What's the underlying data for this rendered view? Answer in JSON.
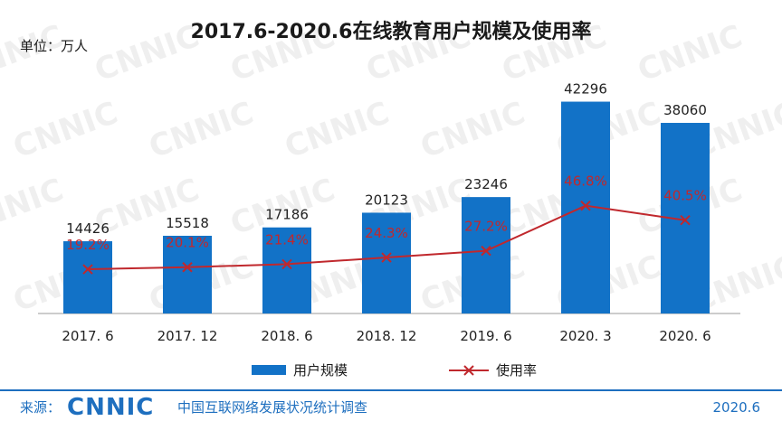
{
  "chart_data": {
    "type": "bar",
    "title": "2017.6-2020.6在线教育用户规模及使用率",
    "unit_label": "单位：万人",
    "categories": [
      "2017. 6",
      "2017. 12",
      "2018. 6",
      "2018. 12",
      "2019. 6",
      "2020. 3",
      "2020. 6"
    ],
    "series": [
      {
        "name": "用户规模",
        "type": "bar",
        "color": "#1272c7",
        "values": [
          14426,
          15518,
          17186,
          20123,
          23246,
          42296,
          38060
        ]
      },
      {
        "name": "使用率",
        "type": "line",
        "color": "#c0282d",
        "marker": "x",
        "values": [
          19.2,
          20.1,
          21.4,
          24.3,
          27.2,
          46.8,
          40.5
        ],
        "labels": [
          "19.2%",
          "20.1%",
          "21.4%",
          "24.3%",
          "27.2%",
          "46.8%",
          "40.5%"
        ]
      }
    ],
    "ylim": [
      0,
      46000
    ],
    "legend_position": "bottom",
    "grid": false
  },
  "watermark": "CNNIC",
  "footer": {
    "source_label": "来源：",
    "logo": "CNNIC",
    "org": "中国互联网络发展状况统计调查",
    "date": "2020.6",
    "color": "#1e6fbf"
  }
}
